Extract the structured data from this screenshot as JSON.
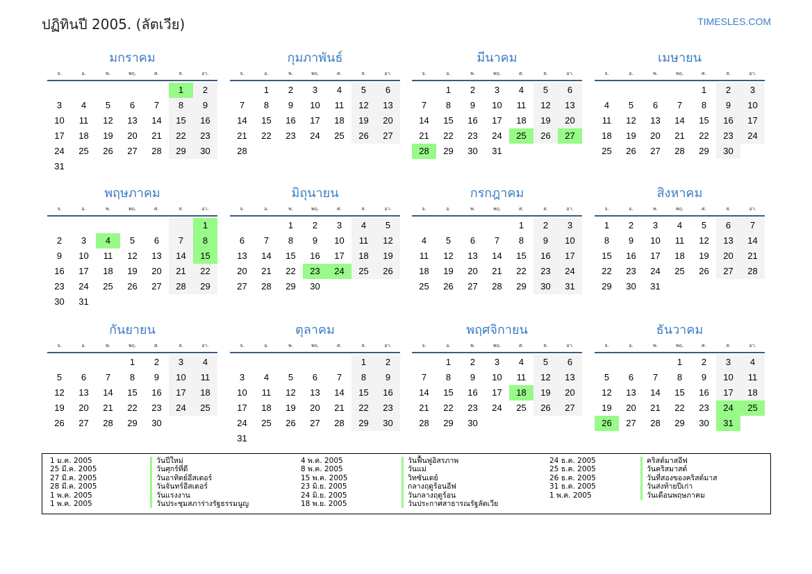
{
  "header": {
    "title": "ปฏิทินปี 2005. (ลัตเวีย)",
    "brand": "TIMESLES.COM"
  },
  "calendar": {
    "year": 2005,
    "weekdays": [
      "จ.",
      "อ.",
      "พ.",
      "พฤ.",
      "ศ.",
      "ส.",
      "อา."
    ],
    "months": [
      "มกราคม",
      "กุมภาพันธ์",
      "มีนาคม",
      "เมษายน",
      "พฤษภาคม",
      "มิถุนายน",
      "กรกฎาคม",
      "สิงหาคม",
      "กันยายน",
      "ตุลาคม",
      "พฤศจิกายน",
      "ธันวาคม"
    ],
    "holiday_color": "#98fa88",
    "weekend_color": "#f3f3f3",
    "accent_color": "#3a7cc3",
    "highlighted_days": [
      "01-01",
      "03-25",
      "03-27",
      "03-28",
      "05-01",
      "05-04",
      "05-08",
      "05-15",
      "06-23",
      "06-24",
      "11-18",
      "12-24",
      "12-25",
      "12-26",
      "12-31"
    ]
  },
  "holidays": [
    {
      "date": "1 ม.ค. 2005",
      "name": "วันปีใหม่"
    },
    {
      "date": "25 มี.ค. 2005",
      "name": "วันศุกร์ที่ดี"
    },
    {
      "date": "27 มี.ค. 2005",
      "name": "วันอาทิตย์อีสเตอร์"
    },
    {
      "date": "28 มี.ค. 2005",
      "name": "วันจันทร์อีสเตอร์"
    },
    {
      "date": "1 พ.ค. 2005",
      "name": "วันแรงงาน"
    },
    {
      "date": "1 พ.ค. 2005",
      "name": "วันประชุมสภาร่างรัฐธรรมนูญ"
    },
    {
      "date": "4 พ.ค. 2005",
      "name": "วันฟื้นฟูอิสรภาพ"
    },
    {
      "date": "8 พ.ค. 2005",
      "name": "วันแม่"
    },
    {
      "date": "15 พ.ค. 2005",
      "name": "วิทซันเดย์"
    },
    {
      "date": "23 มิ.ย. 2005",
      "name": "กลางฤดูร้อนอีฟ"
    },
    {
      "date": "24 มิ.ย. 2005",
      "name": "วันกลางฤดูร้อน"
    },
    {
      "date": "18 พ.ย. 2005",
      "name": "วันประกาศสาธารณรัฐลัตเวีย"
    },
    {
      "date": "24 ธ.ค. 2005",
      "name": "คริสต์มาสอีฟ"
    },
    {
      "date": "25 ธ.ค. 2005",
      "name": "วันคริสมาสต์"
    },
    {
      "date": "26 ธ.ค. 2005",
      "name": "วันที่สองของคริสต์มาส"
    },
    {
      "date": "31 ธ.ค. 2005",
      "name": "วันส่งท้ายปีเก่า"
    },
    {
      "date": "1 พ.ค. 2005",
      "name": "วันเดือนพฤษภาคม"
    }
  ]
}
